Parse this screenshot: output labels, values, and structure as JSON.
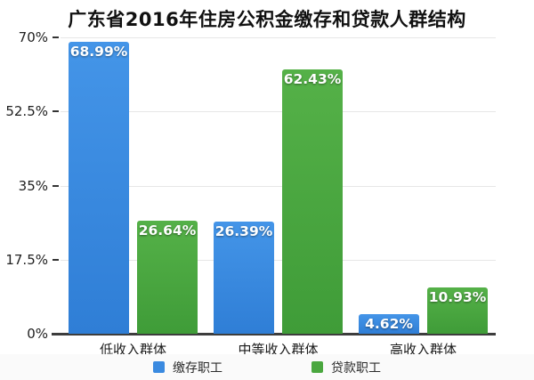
{
  "chart_data": {
    "type": "bar",
    "title": "广东省2016年住房公积金缴存和贷款人群结构",
    "categories": [
      "低收入群体",
      "中等收入群体",
      "高收入群体"
    ],
    "series": [
      {
        "name": "缴存职工",
        "values": [
          68.99,
          26.39,
          4.62
        ],
        "color": "#3a8ae0",
        "color_top": "#4495e8",
        "color_bottom": "#2f7ed6"
      },
      {
        "name": "贷款职工",
        "values": [
          26.64,
          62.43,
          10.93
        ],
        "color": "#4aa73f",
        "color_top": "#55b148",
        "color_bottom": "#3f9c38"
      }
    ],
    "value_suffix": "%",
    "ylim": [
      0,
      70
    ],
    "yticks": [
      "0%",
      "17.5%",
      "35%",
      "52.5%",
      "70%"
    ],
    "grid": true,
    "legend_position": "bottom",
    "axis_color": "#3d3d3d",
    "grid_color": "#e6e6e6"
  }
}
